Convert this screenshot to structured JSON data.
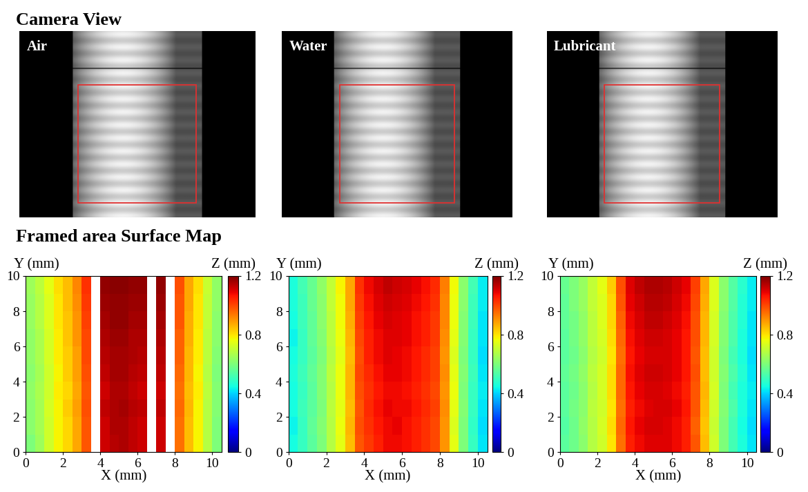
{
  "camera_view": {
    "title": "Camera View",
    "panels": [
      "Air",
      "Water",
      "Lubricant"
    ]
  },
  "surface_map_title": "Framed area Surface Map",
  "chart_data": [
    {
      "type": "heatmap",
      "xlabel": "X (mm)",
      "ylabel": "Y (mm)",
      "colorbar_label": "Z (mm)",
      "xlim": [
        0,
        10.5
      ],
      "ylim": [
        0,
        10
      ],
      "xticks": [
        0,
        2,
        4,
        6,
        8,
        10
      ],
      "yticks": [
        0,
        2,
        4,
        6,
        8,
        10
      ],
      "colorbar_range": [
        0,
        1.2
      ],
      "colorbar_ticks": [
        0,
        0.4,
        0.8,
        1.2
      ],
      "cells": [
        [
          0.6,
          0.65,
          0.72,
          0.78,
          0.82,
          0.88,
          0.98,
          null,
          1.12,
          1.14,
          1.15,
          1.13,
          1.12,
          null,
          1.12,
          null,
          0.95,
          0.85,
          0.78,
          0.68,
          0.6
        ],
        [
          0.62,
          0.66,
          0.72,
          0.78,
          0.82,
          0.88,
          0.98,
          null,
          1.12,
          1.15,
          1.15,
          1.13,
          1.12,
          null,
          1.12,
          null,
          0.95,
          0.85,
          0.78,
          0.68,
          0.6
        ],
        [
          0.62,
          0.66,
          0.73,
          0.78,
          0.83,
          0.89,
          0.99,
          null,
          1.13,
          1.15,
          1.16,
          1.14,
          1.13,
          null,
          1.13,
          null,
          0.96,
          0.86,
          0.78,
          0.68,
          0.61
        ],
        [
          0.63,
          0.67,
          0.72,
          0.79,
          0.82,
          0.88,
          0.98,
          null,
          1.12,
          1.15,
          1.15,
          1.13,
          1.12,
          null,
          1.12,
          null,
          0.95,
          0.85,
          0.79,
          0.69,
          0.61
        ],
        [
          0.62,
          0.66,
          0.72,
          0.78,
          0.83,
          0.89,
          0.99,
          null,
          1.13,
          1.16,
          1.16,
          1.14,
          1.13,
          null,
          1.13,
          null,
          0.96,
          0.86,
          0.78,
          0.68,
          0.6
        ],
        [
          0.63,
          0.67,
          0.73,
          0.79,
          0.83,
          0.89,
          1.0,
          null,
          1.14,
          1.16,
          1.16,
          1.15,
          1.14,
          null,
          1.14,
          null,
          0.97,
          0.86,
          0.79,
          0.69,
          0.61
        ],
        [
          0.63,
          0.67,
          0.73,
          0.79,
          0.84,
          0.9,
          1.0,
          null,
          1.15,
          1.17,
          1.17,
          1.15,
          1.15,
          null,
          1.15,
          null,
          0.97,
          0.87,
          0.79,
          0.69,
          0.62
        ],
        [
          0.64,
          0.68,
          0.74,
          0.8,
          0.84,
          0.9,
          1.01,
          null,
          1.16,
          1.18,
          1.18,
          1.16,
          1.16,
          null,
          1.16,
          null,
          0.98,
          0.87,
          0.8,
          0.7,
          0.62
        ],
        [
          0.64,
          0.68,
          0.74,
          0.8,
          0.85,
          0.91,
          1.02,
          null,
          1.17,
          1.18,
          1.18,
          1.17,
          1.17,
          null,
          1.17,
          null,
          0.98,
          0.88,
          0.8,
          0.7,
          0.63
        ],
        [
          0.65,
          0.69,
          0.75,
          0.81,
          0.85,
          0.92,
          1.03,
          null,
          1.18,
          1.19,
          1.19,
          1.18,
          1.18,
          null,
          1.18,
          null,
          0.99,
          0.88,
          0.81,
          0.71,
          0.63
        ]
      ]
    },
    {
      "type": "heatmap",
      "xlabel": "X (mm)",
      "ylabel": "Y (mm)",
      "colorbar_label": "Z (mm)",
      "xlim": [
        0,
        10.5
      ],
      "ylim": [
        0,
        10
      ],
      "xticks": [
        0,
        2,
        4,
        6,
        8,
        10
      ],
      "yticks": [
        0,
        2,
        4,
        6,
        8,
        10
      ],
      "colorbar_range": [
        0,
        1.2
      ],
      "colorbar_ticks": [
        0,
        0.4,
        0.8,
        1.2
      ],
      "cells": [
        [
          0.45,
          0.5,
          0.55,
          0.6,
          0.68,
          0.75,
          0.85,
          0.98,
          1.02,
          1.05,
          1.08,
          1.08,
          1.07,
          1.05,
          1.03,
          1.0,
          0.9,
          0.75,
          0.6,
          0.5,
          0.42
        ],
        [
          0.44,
          0.5,
          0.56,
          0.61,
          0.68,
          0.76,
          0.86,
          0.99,
          1.03,
          1.06,
          1.08,
          1.09,
          1.07,
          1.05,
          1.03,
          1.0,
          0.9,
          0.74,
          0.6,
          0.49,
          0.41
        ],
        [
          0.45,
          0.51,
          0.55,
          0.6,
          0.69,
          0.75,
          0.85,
          0.98,
          1.04,
          1.07,
          1.09,
          1.08,
          1.08,
          1.06,
          1.04,
          1.01,
          0.91,
          0.75,
          0.61,
          0.5,
          0.42
        ],
        [
          0.45,
          0.5,
          0.55,
          0.61,
          0.68,
          0.76,
          0.86,
          0.99,
          1.03,
          1.06,
          1.08,
          1.08,
          1.07,
          1.05,
          1.03,
          1.0,
          0.9,
          0.76,
          0.6,
          0.5,
          0.43
        ],
        [
          0.46,
          0.51,
          0.56,
          0.61,
          0.69,
          0.76,
          0.86,
          1.0,
          1.04,
          1.07,
          1.09,
          1.09,
          1.08,
          1.06,
          1.04,
          1.01,
          0.91,
          0.75,
          0.61,
          0.51,
          0.42
        ],
        [
          0.45,
          0.5,
          0.55,
          0.6,
          0.68,
          0.75,
          0.85,
          0.99,
          1.05,
          1.08,
          1.1,
          1.09,
          1.08,
          1.06,
          1.04,
          1.01,
          0.9,
          0.74,
          0.6,
          0.5,
          0.41
        ],
        [
          0.44,
          0.5,
          0.56,
          0.61,
          0.69,
          0.76,
          0.86,
          1.0,
          1.05,
          1.08,
          1.1,
          1.1,
          1.09,
          1.07,
          1.05,
          1.02,
          0.91,
          0.75,
          0.61,
          0.5,
          0.42
        ],
        [
          0.45,
          0.51,
          0.56,
          0.62,
          0.69,
          0.77,
          0.87,
          1.01,
          1.06,
          1.09,
          1.11,
          1.1,
          1.09,
          1.07,
          1.05,
          1.02,
          0.92,
          0.76,
          0.61,
          0.51,
          0.42
        ],
        [
          0.46,
          0.51,
          0.57,
          0.62,
          0.7,
          0.77,
          0.88,
          1.02,
          1.07,
          1.1,
          1.12,
          1.11,
          1.1,
          1.08,
          1.06,
          1.03,
          0.92,
          0.76,
          0.62,
          0.51,
          0.43
        ],
        [
          0.46,
          0.52,
          0.57,
          0.63,
          0.7,
          0.78,
          0.88,
          1.03,
          1.08,
          1.11,
          1.13,
          1.12,
          1.11,
          1.09,
          1.07,
          1.04,
          0.93,
          0.77,
          0.62,
          0.52,
          0.43
        ]
      ]
    },
    {
      "type": "heatmap",
      "xlabel": "X (mm)",
      "ylabel": "Y (mm)",
      "colorbar_label": "Z (mm)",
      "xlim": [
        0,
        10.5
      ],
      "ylim": [
        0,
        10
      ],
      "xticks": [
        0,
        2,
        4,
        6,
        8,
        10
      ],
      "yticks": [
        0,
        2,
        4,
        6,
        8,
        10
      ],
      "colorbar_range": [
        0,
        1.2
      ],
      "colorbar_ticks": [
        0,
        0.4,
        0.8,
        1.2
      ],
      "cells": [
        [
          0.55,
          0.58,
          0.62,
          0.68,
          0.72,
          0.8,
          0.95,
          1.05,
          1.08,
          1.1,
          1.1,
          1.1,
          1.08,
          1.05,
          0.98,
          0.85,
          0.72,
          0.6,
          0.52,
          0.46,
          0.42
        ],
        [
          0.54,
          0.58,
          0.63,
          0.68,
          0.73,
          0.81,
          0.96,
          1.06,
          1.09,
          1.11,
          1.11,
          1.1,
          1.08,
          1.05,
          0.97,
          0.84,
          0.71,
          0.6,
          0.52,
          0.45,
          0.41
        ],
        [
          0.55,
          0.59,
          0.62,
          0.69,
          0.72,
          0.8,
          0.95,
          1.05,
          1.08,
          1.1,
          1.11,
          1.11,
          1.09,
          1.06,
          0.98,
          0.85,
          0.72,
          0.61,
          0.53,
          0.46,
          0.42
        ],
        [
          0.55,
          0.58,
          0.62,
          0.68,
          0.73,
          0.81,
          0.96,
          1.06,
          1.09,
          1.11,
          1.11,
          1.1,
          1.08,
          1.05,
          0.98,
          0.86,
          0.73,
          0.6,
          0.52,
          0.46,
          0.43
        ],
        [
          0.56,
          0.59,
          0.63,
          0.69,
          0.73,
          0.81,
          0.96,
          1.07,
          1.1,
          1.12,
          1.12,
          1.11,
          1.09,
          1.06,
          0.99,
          0.85,
          0.72,
          0.61,
          0.53,
          0.47,
          0.42
        ],
        [
          0.55,
          0.58,
          0.62,
          0.68,
          0.72,
          0.8,
          0.95,
          1.06,
          1.09,
          1.11,
          1.11,
          1.11,
          1.09,
          1.06,
          0.98,
          0.85,
          0.72,
          0.6,
          0.52,
          0.46,
          0.41
        ],
        [
          0.55,
          0.59,
          0.63,
          0.69,
          0.73,
          0.81,
          0.96,
          1.07,
          1.1,
          1.12,
          1.12,
          1.11,
          1.09,
          1.06,
          0.99,
          0.86,
          0.73,
          0.61,
          0.53,
          0.46,
          0.42
        ],
        [
          0.56,
          0.59,
          0.63,
          0.69,
          0.74,
          0.82,
          0.97,
          1.08,
          1.11,
          1.13,
          1.13,
          1.12,
          1.1,
          1.07,
          0.99,
          0.86,
          0.73,
          0.61,
          0.53,
          0.47,
          0.42
        ],
        [
          0.56,
          0.6,
          0.64,
          0.7,
          0.74,
          0.82,
          0.98,
          1.09,
          1.12,
          1.14,
          1.14,
          1.13,
          1.11,
          1.08,
          1.0,
          0.87,
          0.74,
          0.62,
          0.54,
          0.47,
          0.43
        ],
        [
          0.57,
          0.6,
          0.64,
          0.7,
          0.75,
          0.83,
          0.99,
          1.1,
          1.13,
          1.15,
          1.15,
          1.14,
          1.12,
          1.09,
          1.01,
          0.88,
          0.74,
          0.62,
          0.54,
          0.48,
          0.43
        ]
      ]
    }
  ]
}
